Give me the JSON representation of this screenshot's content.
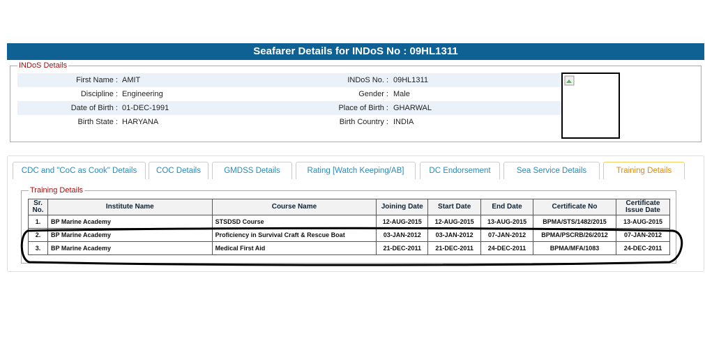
{
  "header": {
    "title": "Seafarer Details for INDoS No : 09HL1311"
  },
  "indos_details": {
    "legend": "INDoS Details",
    "rows": [
      [
        {
          "label": "First Name :",
          "value": "AMIT"
        },
        {
          "label": "INDoS No. :",
          "value": "09HL1311"
        }
      ],
      [
        {
          "label": "Discipline :",
          "value": "Engineering"
        },
        {
          "label": "Gender :",
          "value": "Male"
        }
      ],
      [
        {
          "label": "Date of Birth :",
          "value": "01-DEC-1991"
        },
        {
          "label": "Place of Birth :",
          "value": "GHARWAL"
        }
      ],
      [
        {
          "label": "Birth State :",
          "value": "HARYANA"
        },
        {
          "label": "Birth Country :",
          "value": "INDIA"
        }
      ]
    ]
  },
  "tabs": [
    "CDC and \"CoC as Cook\" Details",
    "COC Details",
    "GMDSS Details",
    "Rating [Watch Keeping/AB]",
    "DC Endorsement",
    "Sea Service Details",
    "Training Details"
  ],
  "training": {
    "legend": "Training Details",
    "columns": [
      "Sr. No.",
      "Institute Name",
      "Course Name",
      "Joining Date",
      "Start Date",
      "End Date",
      "Certificate No",
      "Certificate Issue Date"
    ],
    "rows": [
      [
        "1.",
        "BP Marine Academy",
        "STSDSD Course",
        "12-AUG-2015",
        "12-AUG-2015",
        "13-AUG-2015",
        "BPMA/STS/1482/2015",
        "13-AUG-2015"
      ],
      [
        "2.",
        "BP Marine Academy",
        "Proficiency in Survival Craft & Rescue Boat",
        "03-JAN-2012",
        "03-JAN-2012",
        "07-JAN-2012",
        "BPMA/PSCRB/26/2012",
        "07-JAN-2012"
      ],
      [
        "3.",
        "BP Marine Academy",
        "Medical First Aid",
        "21-DEC-2011",
        "21-DEC-2011",
        "24-DEC-2011",
        "BPMA/MFA/1083",
        "24-DEC-2011"
      ]
    ]
  }
}
